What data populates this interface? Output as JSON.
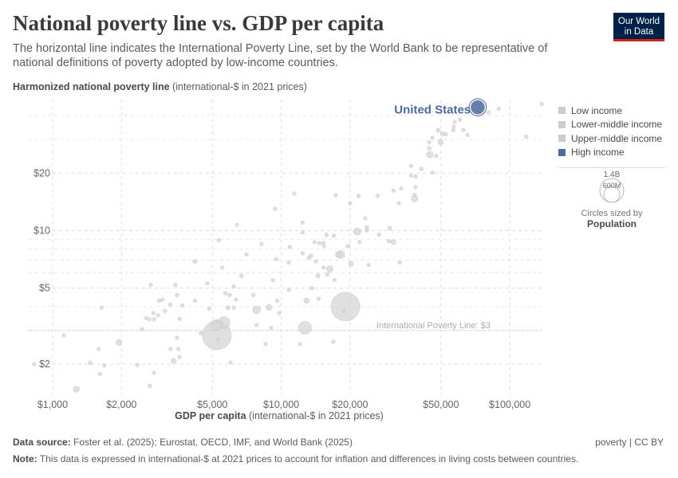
{
  "header": {
    "title": "National poverty line vs. GDP per capita",
    "subtitle": "The horizontal line indicates the International Poverty Line, set by the World Bank to be representative of national definitions of poverty adopted by low-income countries.",
    "logo_line1": "Our World",
    "logo_line2": "in Data"
  },
  "chart_data": {
    "type": "scatter",
    "title": "National poverty line vs. GDP per capita",
    "ylabel_bold": "Harmonized national poverty line",
    "ylabel_rest": " (international-$ in 2021 prices)",
    "xlabel_bold": "GDP per capita",
    "xlabel_rest": " (international-$ in 2021 prices)",
    "x_scale": "log",
    "y_scale": "log",
    "xlim": [
      786,
      140000
    ],
    "ylim": [
      1.39,
      48.5
    ],
    "x_ticks": [
      {
        "v": 1000,
        "label": "$1,000"
      },
      {
        "v": 2000,
        "label": "$2,000"
      },
      {
        "v": 5000,
        "label": "$5,000"
      },
      {
        "v": 10000,
        "label": "$10,000"
      },
      {
        "v": 20000,
        "label": "$20,000"
      },
      {
        "v": 50000,
        "label": "$50,000"
      },
      {
        "v": 100000,
        "label": "$100,000"
      }
    ],
    "y_ticks": [
      {
        "v": 2,
        "label": "$2"
      },
      {
        "v": 5,
        "label": "$5"
      },
      {
        "v": 10,
        "label": "$10"
      },
      {
        "v": 20,
        "label": "$20"
      }
    ],
    "y_minor_grid": [
      3,
      4,
      6,
      7,
      8,
      9,
      30,
      40
    ],
    "grid": true,
    "reference_line": {
      "value": 3,
      "label": "International Poverty Line: $3"
    },
    "legend": {
      "position": "right",
      "items": [
        {
          "label": "Low income",
          "color": "#cccccc"
        },
        {
          "label": "Lower-middle income",
          "color": "#cccccc"
        },
        {
          "label": "Upper-middle income",
          "color": "#cccccc"
        },
        {
          "label": "High income",
          "color": "#4c6a9c"
        }
      ]
    },
    "size_legend": {
      "big": "1.4B",
      "small": "600M",
      "caption": "Circles sized by",
      "variable": "Population"
    },
    "highlight": {
      "label": "United States",
      "gdp": 72400,
      "line": 44.2,
      "pop_m": 340,
      "color": "#4c6a9c"
    },
    "point_color": "#d6d6d6",
    "points": [
      [
        830,
        2.0,
        5
      ],
      [
        1120,
        2.83,
        5
      ],
      [
        1270,
        1.48,
        60
      ],
      [
        1460,
        2.03,
        8
      ],
      [
        1590,
        2.4,
        8
      ],
      [
        1610,
        1.78,
        10
      ],
      [
        1640,
        3.95,
        3
      ],
      [
        1680,
        1.97,
        5
      ],
      [
        1950,
        2.6,
        60
      ],
      [
        2340,
        1.98,
        5
      ],
      [
        2460,
        3.05,
        8
      ],
      [
        2560,
        3.49,
        8
      ],
      [
        2660,
        1.54,
        25
      ],
      [
        2690,
        5.2,
        5
      ],
      [
        2650,
        3.43,
        10
      ],
      [
        2760,
        3.7,
        5
      ],
      [
        2780,
        3.43,
        8
      ],
      [
        2770,
        1.8,
        5
      ],
      [
        2890,
        3.6,
        5
      ],
      [
        2920,
        4.3,
        5
      ],
      [
        3020,
        4.35,
        5
      ],
      [
        3100,
        3.8,
        5
      ],
      [
        3270,
        4.1,
        5
      ],
      [
        3280,
        2.4,
        5
      ],
      [
        3380,
        2.08,
        40
      ],
      [
        3440,
        5.2,
        5
      ],
      [
        3500,
        4.6,
        5
      ],
      [
        3500,
        2.75,
        5
      ],
      [
        3550,
        2.4,
        5
      ],
      [
        3590,
        3.45,
        5
      ],
      [
        3590,
        2.18,
        5
      ],
      [
        3690,
        4.05,
        5
      ],
      [
        4200,
        6.9,
        30
      ],
      [
        4200,
        4.3,
        5
      ],
      [
        4450,
        2.9,
        3
      ],
      [
        4750,
        5.3,
        15
      ],
      [
        4840,
        3.9,
        10
      ],
      [
        5200,
        3.2,
        220
      ],
      [
        5230,
        2.83,
        1430
      ],
      [
        5300,
        2.69,
        8
      ],
      [
        5330,
        8.9,
        3
      ],
      [
        5520,
        6.4,
        5
      ],
      [
        5620,
        3.3,
        240
      ],
      [
        5700,
        4.7,
        5
      ],
      [
        5850,
        3.95,
        30
      ],
      [
        5950,
        4.6,
        5
      ],
      [
        6000,
        2.04,
        15
      ],
      [
        6200,
        5.1,
        5
      ],
      [
        6200,
        3.95,
        15
      ],
      [
        6350,
        4.35,
        5
      ],
      [
        6400,
        10.7,
        5
      ],
      [
        6700,
        5.8,
        5
      ],
      [
        7050,
        7.5,
        5
      ],
      [
        7550,
        4.6,
        5
      ],
      [
        7800,
        3.2,
        20
      ],
      [
        7800,
        3.85,
        100
      ],
      [
        8200,
        8.5,
        5
      ],
      [
        8550,
        2.55,
        15
      ],
      [
        8850,
        3.96,
        60
      ],
      [
        9050,
        3.1,
        5
      ],
      [
        9200,
        5.5,
        15
      ],
      [
        9400,
        13.0,
        3
      ],
      [
        9500,
        7.1,
        5
      ],
      [
        9600,
        4.3,
        5
      ],
      [
        9800,
        3.7,
        5
      ],
      [
        10800,
        6.8,
        5
      ],
      [
        10800,
        4.9,
        5
      ],
      [
        10900,
        8.2,
        5
      ],
      [
        11400,
        15.6,
        5
      ],
      [
        12100,
        2.55,
        5
      ],
      [
        12400,
        11.0,
        5
      ],
      [
        12400,
        9.8,
        5
      ],
      [
        12400,
        7.6,
        5
      ],
      [
        12700,
        3.1,
        280
      ],
      [
        12900,
        4.3,
        50
      ],
      [
        13200,
        7.2,
        20
      ],
      [
        13500,
        7.4,
        5
      ],
      [
        13600,
        5.0,
        5
      ],
      [
        14000,
        8.7,
        5
      ],
      [
        14200,
        6.9,
        5
      ],
      [
        14500,
        5.8,
        30
      ],
      [
        14600,
        4.4,
        20
      ],
      [
        14700,
        8.6,
        5
      ],
      [
        15300,
        6.4,
        15
      ],
      [
        15300,
        8.6,
        5
      ],
      [
        15400,
        8.3,
        5
      ],
      [
        15800,
        9.5,
        5
      ],
      [
        15900,
        5.9,
        5
      ],
      [
        16300,
        6.3,
        70
      ],
      [
        16900,
        2.62,
        5
      ],
      [
        17000,
        9.4,
        5
      ],
      [
        17100,
        5.5,
        15
      ],
      [
        17300,
        15.3,
        3
      ],
      [
        17700,
        7.5,
        50
      ],
      [
        18200,
        7.5,
        110
      ],
      [
        19100,
        4.0,
        1410
      ],
      [
        18800,
        3.8,
        3
      ],
      [
        19600,
        8.3,
        5
      ],
      [
        20000,
        13.9,
        3
      ],
      [
        20200,
        6.7,
        40
      ],
      [
        21500,
        9.9,
        90
      ],
      [
        21800,
        15.2,
        3
      ],
      [
        22000,
        8.7,
        10
      ],
      [
        23300,
        11.6,
        5
      ],
      [
        23700,
        10.4,
        5
      ],
      [
        23700,
        10.0,
        5
      ],
      [
        24100,
        6.6,
        5
      ],
      [
        26400,
        15.2,
        20
      ],
      [
        26800,
        9.5,
        5
      ],
      [
        29600,
        8.8,
        5
      ],
      [
        29800,
        10.3,
        25
      ],
      [
        31000,
        16.2,
        5
      ],
      [
        31000,
        8.7,
        40
      ],
      [
        32700,
        13.9,
        5
      ],
      [
        33000,
        6.8,
        5
      ],
      [
        33500,
        16.6,
        5
      ],
      [
        37000,
        21.8,
        5
      ],
      [
        37000,
        19.4,
        5
      ],
      [
        38700,
        19.2,
        5
      ],
      [
        38700,
        16.9,
        5
      ],
      [
        38300,
        14.7,
        80
      ],
      [
        38300,
        15.4,
        5
      ],
      [
        41000,
        21,
        20
      ],
      [
        44400,
        29.0,
        5
      ],
      [
        44400,
        27.0,
        25
      ],
      [
        44700,
        25.0,
        70
      ],
      [
        45900,
        30.6,
        5
      ],
      [
        46000,
        20.1,
        5
      ],
      [
        47600,
        24.6,
        5
      ],
      [
        48600,
        33.5,
        25
      ],
      [
        49800,
        29.0,
        50
      ],
      [
        50700,
        32.1,
        25
      ],
      [
        52300,
        32,
        25
      ],
      [
        56600,
        33.5,
        5
      ],
      [
        56800,
        35,
        5
      ],
      [
        57400,
        37,
        15
      ],
      [
        60500,
        38,
        5
      ],
      [
        62700,
        33.5,
        5
      ],
      [
        65300,
        31.6,
        5
      ],
      [
        81000,
        41.5,
        5
      ],
      [
        89500,
        43.5,
        5
      ],
      [
        118000,
        31,
        5
      ],
      [
        138000,
        46,
        5
      ]
    ]
  },
  "footer": {
    "source_label": "Data source:",
    "source": " Foster et al. (2025); Eurostat, OECD, IMF, and World Bank (2025)",
    "license": "poverty | CC BY",
    "note_label": "Note:",
    "note": " This data is expressed in international-$ at 2021 prices to account for inflation and differences in living costs between countries."
  }
}
